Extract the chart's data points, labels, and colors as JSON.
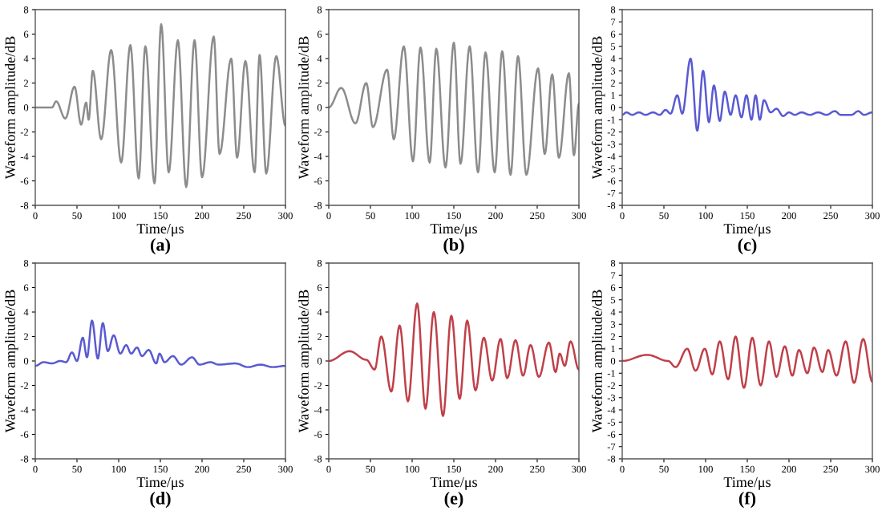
{
  "chart_data": [
    {
      "type": "line",
      "title": "(a)",
      "xlabel": "Time/μs",
      "ylabel": "Waveform amplitude/dB",
      "xlim": [
        0,
        300
      ],
      "xticks": [
        0,
        50,
        100,
        150,
        200,
        250,
        300
      ],
      "ylim": [
        -8,
        8
      ],
      "yticks": [
        -8,
        -6,
        -4,
        -2,
        0,
        2,
        4,
        6,
        8
      ],
      "marker": "none",
      "line_style": "solid",
      "grid": false,
      "series": [
        {
          "color": "#8c8c8c",
          "x": [
            0,
            20,
            25,
            36,
            47,
            55,
            61,
            64,
            69,
            79,
            91,
            103,
            114,
            124,
            132,
            143,
            151,
            160,
            171,
            181,
            191,
            200,
            214,
            221,
            235,
            242,
            252,
            263,
            269,
            277,
            289,
            300
          ],
          "values": [
            0,
            0,
            0.5,
            -0.9,
            1.7,
            -1.4,
            0.4,
            -1.0,
            3.0,
            -2.6,
            4.7,
            -4.5,
            5.1,
            -5.8,
            5.0,
            -6.2,
            6.8,
            -5.3,
            5.5,
            -6.5,
            5.5,
            -5.7,
            5.8,
            -3.8,
            4.0,
            -4.1,
            3.8,
            -5.3,
            4.3,
            -5.4,
            4.2,
            -1.5
          ]
        }
      ]
    },
    {
      "type": "line",
      "title": "(b)",
      "xlabel": "Time/μs",
      "ylabel": "Waveform amplitude/dB",
      "xlim": [
        0,
        300
      ],
      "xticks": [
        0,
        50,
        100,
        150,
        200,
        250,
        300
      ],
      "ylim": [
        -8,
        8
      ],
      "yticks": [
        -8,
        -6,
        -4,
        -2,
        0,
        2,
        4,
        6,
        8
      ],
      "marker": "none",
      "line_style": "solid",
      "grid": false,
      "series": [
        {
          "color": "#8c8c8c",
          "x": [
            0,
            15,
            32,
            45,
            53,
            70,
            78,
            90,
            101,
            110,
            121,
            129,
            140,
            150,
            158,
            169,
            179,
            188,
            199,
            208,
            218,
            227,
            237,
            251,
            259,
            268,
            276,
            288,
            294,
            300
          ],
          "values": [
            0,
            1.6,
            -1.3,
            2.0,
            -1.6,
            3.1,
            -2.6,
            5.0,
            -4.4,
            4.9,
            -4.5,
            4.8,
            -4.9,
            5.3,
            -4.6,
            5.0,
            -5.3,
            4.5,
            -5.3,
            4.6,
            -5.5,
            4.2,
            -5.5,
            3.2,
            -3.8,
            2.7,
            -4.1,
            2.8,
            -3.9,
            0.3
          ]
        }
      ]
    },
    {
      "type": "line",
      "title": "(c)",
      "xlabel": "Time/μs",
      "ylabel": "Waveform amplitude/dB",
      "xlim": [
        0,
        300
      ],
      "xticks": [
        0,
        50,
        100,
        150,
        200,
        250,
        300
      ],
      "ylim": [
        -8,
        8
      ],
      "yticks": [
        -8,
        -7,
        -6,
        -5,
        -4,
        -3,
        -2,
        -1,
        0,
        1,
        2,
        3,
        4,
        5,
        6,
        7,
        8
      ],
      "marker": "none",
      "line_style": "solid",
      "grid": false,
      "series": [
        {
          "color": "#5a5ad2",
          "x": [
            0,
            5,
            12,
            20,
            28,
            37,
            45,
            52,
            58,
            66,
            72,
            82,
            90,
            97,
            104,
            110,
            117,
            123,
            130,
            136,
            143,
            149,
            155,
            160,
            165,
            170,
            178,
            185,
            193,
            200,
            207,
            215,
            225,
            235,
            245,
            255,
            262,
            275,
            283,
            290,
            300
          ],
          "values": [
            -0.6,
            -0.4,
            -0.6,
            -0.4,
            -0.6,
            -0.4,
            -0.6,
            -0.2,
            -0.5,
            1.0,
            -0.5,
            4.0,
            -1.9,
            3.0,
            -1.2,
            1.8,
            -1.1,
            1.3,
            -0.6,
            1.0,
            -0.8,
            1.0,
            -1.0,
            1.0,
            -1.0,
            0.6,
            -0.4,
            -0.1,
            -0.7,
            -0.4,
            -0.6,
            -0.4,
            -0.6,
            -0.4,
            -0.6,
            -0.3,
            -0.6,
            -0.6,
            -0.3,
            -0.6,
            -0.4
          ]
        }
      ]
    },
    {
      "type": "line",
      "title": "(d)",
      "xlabel": "Time/μs",
      "ylabel": "Waveform amplitude/dB",
      "xlim": [
        0,
        300
      ],
      "xticks": [
        0,
        50,
        100,
        150,
        200,
        250,
        300
      ],
      "ylim": [
        -8,
        8
      ],
      "yticks": [
        -8,
        -6,
        -4,
        -2,
        0,
        2,
        4,
        6,
        8
      ],
      "marker": "none",
      "line_style": "solid",
      "grid": false,
      "series": [
        {
          "color": "#5a5ad2",
          "x": [
            0,
            10,
            20,
            30,
            37,
            44,
            50,
            57,
            62,
            68,
            75,
            81,
            87,
            94,
            102,
            109,
            115,
            122,
            128,
            136,
            145,
            149,
            155,
            165,
            175,
            188,
            197,
            210,
            220,
            240,
            255,
            270,
            285,
            300
          ],
          "values": [
            -0.4,
            -0.1,
            -0.2,
            0,
            -0.1,
            0.7,
            0,
            1.9,
            0.3,
            3.3,
            0.2,
            3.1,
            0.8,
            2.1,
            0.6,
            1.3,
            0.6,
            1.1,
            0.4,
            0.9,
            -0.2,
            0.6,
            -0.1,
            0.4,
            -0.3,
            0.3,
            -0.3,
            -0.1,
            -0.3,
            -0.2,
            -0.5,
            -0.3,
            -0.5,
            -0.4
          ]
        }
      ]
    },
    {
      "type": "line",
      "title": "(e)",
      "xlabel": "Time/μs",
      "ylabel": "Waveform amplitude/dB",
      "xlim": [
        0,
        300
      ],
      "xticks": [
        0,
        50,
        100,
        150,
        200,
        250,
        300
      ],
      "ylim": [
        -8,
        8
      ],
      "yticks": [
        -8,
        -6,
        -4,
        -2,
        0,
        2,
        4,
        6,
        8
      ],
      "marker": "none",
      "line_style": "solid",
      "grid": false,
      "series": [
        {
          "color": "#c0404a",
          "x": [
            0,
            25,
            45,
            55,
            63,
            75,
            85,
            95,
            106,
            116,
            126,
            137,
            147,
            157,
            166,
            176,
            186,
            196,
            206,
            214,
            224,
            233,
            242,
            252,
            264,
            272,
            277,
            283,
            290,
            300
          ],
          "values": [
            0,
            0.8,
            0.1,
            -0.7,
            2.0,
            -2.5,
            2.9,
            -3.3,
            4.7,
            -3.9,
            4.0,
            -4.5,
            3.7,
            -3.1,
            3.3,
            -2.4,
            1.9,
            -1.6,
            1.8,
            -1.4,
            1.7,
            -1.2,
            1.3,
            -1.3,
            1.5,
            -0.9,
            0.6,
            -0.4,
            1.6,
            -0.7
          ]
        }
      ]
    },
    {
      "type": "line",
      "title": "(f)",
      "xlabel": "Time/μs",
      "ylabel": "Waveform amplitude/dB",
      "xlim": [
        0,
        300
      ],
      "xticks": [
        0,
        50,
        100,
        150,
        200,
        250,
        300
      ],
      "ylim": [
        -8,
        8
      ],
      "yticks": [
        -8,
        -7,
        -6,
        -5,
        -4,
        -3,
        -2,
        -1,
        0,
        1,
        2,
        3,
        4,
        5,
        6,
        7,
        8
      ],
      "marker": "none",
      "line_style": "solid",
      "grid": false,
      "series": [
        {
          "color": "#c0404a",
          "x": [
            0,
            30,
            55,
            64,
            78,
            88,
            99,
            108,
            117,
            127,
            136,
            146,
            156,
            166,
            176,
            185,
            195,
            204,
            212,
            222,
            230,
            240,
            247,
            257,
            268,
            278,
            289,
            300
          ],
          "values": [
            0,
            0.5,
            0,
            -0.5,
            1.0,
            -0.8,
            1.0,
            -1.1,
            1.6,
            -1.5,
            2.0,
            -2.2,
            1.9,
            -2.0,
            1.6,
            -1.3,
            1.2,
            -1.2,
            0.9,
            -1.0,
            1.1,
            -0.9,
            0.9,
            -1.2,
            1.6,
            -1.8,
            1.8,
            -1.7
          ]
        }
      ]
    }
  ]
}
